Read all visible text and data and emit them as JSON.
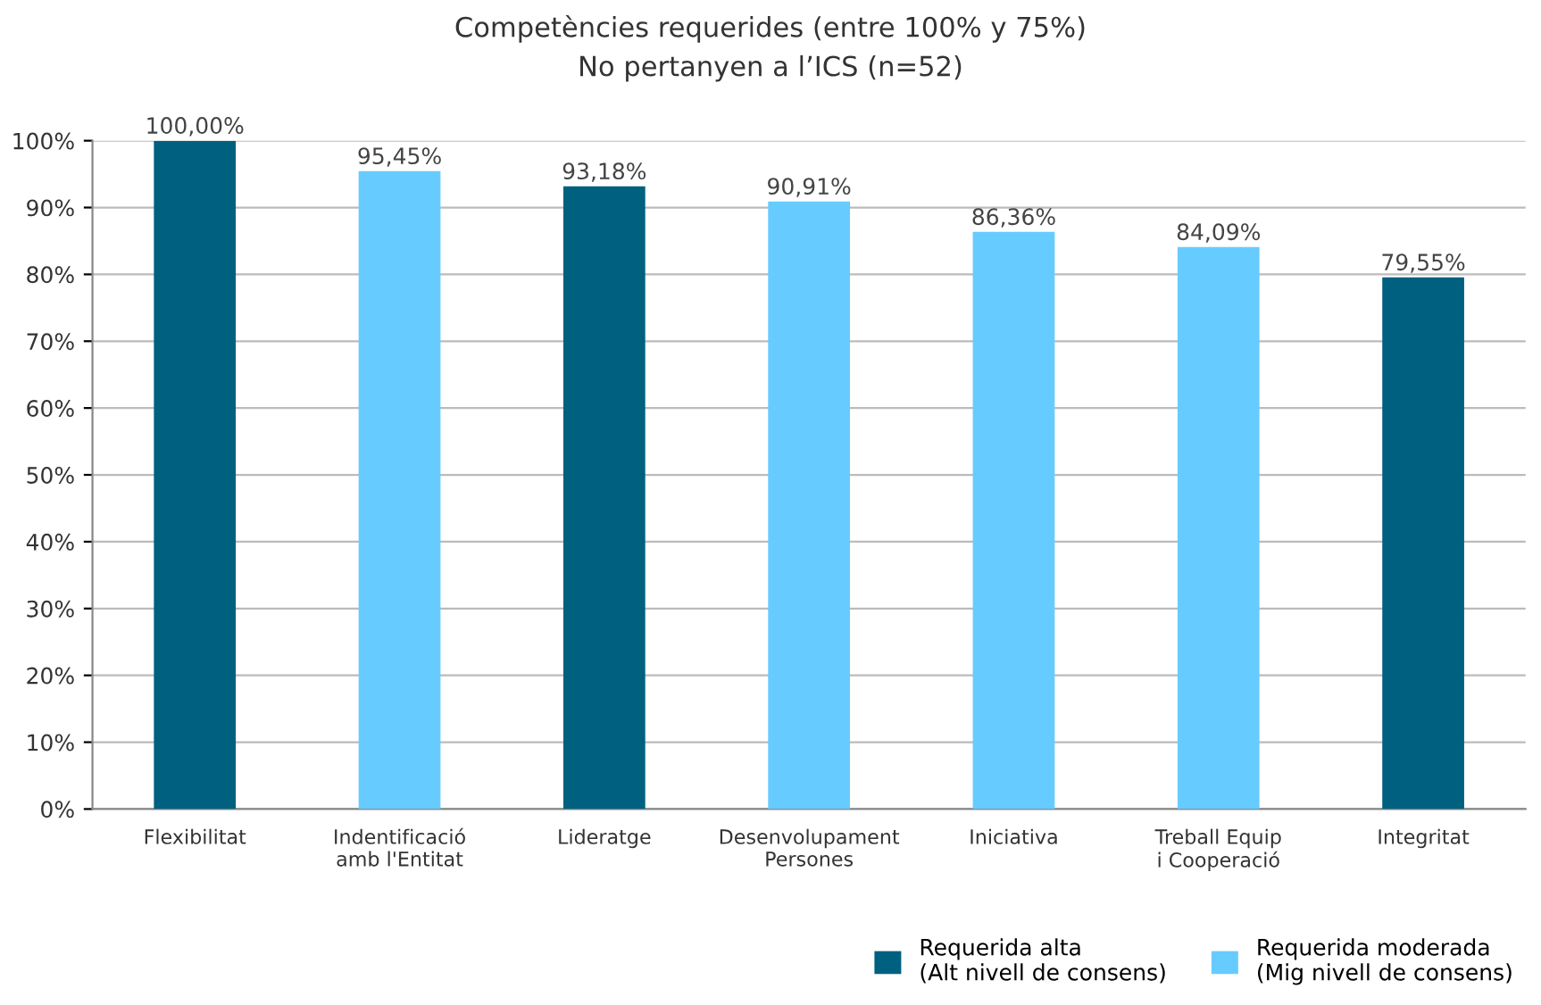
{
  "chart_data": {
    "type": "bar",
    "title": "Competències requerides (entre 100% y 75%)",
    "subtitle": "No pertanyen a l’ICS (n=52)",
    "categories": [
      "Flexibilitat",
      "Indentificació\namb l'Entitat",
      "Lideratge",
      "Desenvolupament\nPersones",
      "Iniciativa",
      "Treball Equip\ni Cooperació",
      "Integritat"
    ],
    "series": [
      {
        "name": "Requerida alta\n(Alt nivell de consens)",
        "color": "#006080",
        "values": [
          100.0,
          null,
          93.18,
          null,
          null,
          null,
          79.55
        ],
        "value_labels": [
          "100,00%",
          null,
          "93,18%",
          null,
          null,
          null,
          "79,55%"
        ]
      },
      {
        "name": "Requerida moderada\n(Mig nivell de consens)",
        "color": "#66ccff",
        "values": [
          null,
          95.45,
          null,
          90.91,
          86.36,
          84.09,
          null
        ],
        "value_labels": [
          null,
          "95,45%",
          null,
          "90,91%",
          "86,36%",
          "84,09%",
          null
        ]
      }
    ],
    "ylim": [
      0,
      100
    ],
    "yticks": [
      {
        "value": 0,
        "label": "0%"
      },
      {
        "value": 10,
        "label": "10%"
      },
      {
        "value": 20,
        "label": "20%"
      },
      {
        "value": 30,
        "label": "30%"
      },
      {
        "value": 40,
        "label": "40%"
      },
      {
        "value": 50,
        "label": "50%"
      },
      {
        "value": 60,
        "label": "60%"
      },
      {
        "value": 70,
        "label": "70%"
      },
      {
        "value": 80,
        "label": "80%"
      },
      {
        "value": 90,
        "label": "90%"
      },
      {
        "value": 100,
        "label": "100%"
      }
    ],
    "grid": "y",
    "legend": "bottom right"
  }
}
